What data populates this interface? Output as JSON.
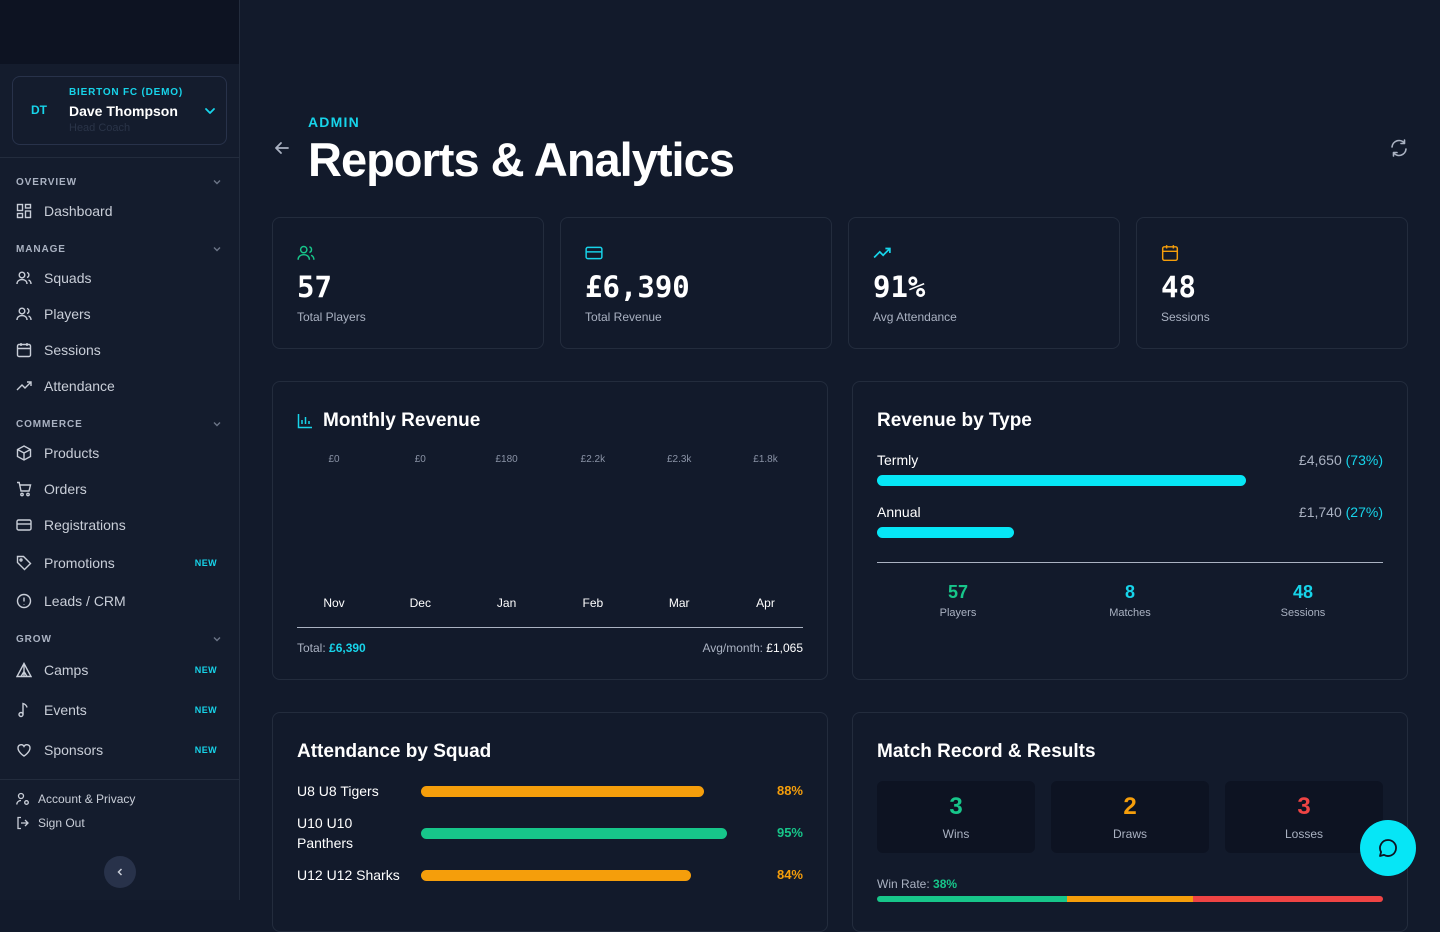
{
  "club": {
    "initials": "DT",
    "name": "BIERTON FC (DEMO)",
    "user": "Dave Thompson",
    "role": "Head Coach"
  },
  "sidebar": {
    "sections": [
      {
        "label": "OVERVIEW"
      },
      {
        "label": "MANAGE"
      },
      {
        "label": "COMMERCE"
      },
      {
        "label": "GROW"
      }
    ],
    "items": [
      {
        "label": "Dashboard",
        "badge": ""
      },
      {
        "label": "Squads",
        "badge": ""
      },
      {
        "label": "Players",
        "badge": ""
      },
      {
        "label": "Sessions",
        "badge": ""
      },
      {
        "label": "Attendance",
        "badge": ""
      },
      {
        "label": "Products",
        "badge": ""
      },
      {
        "label": "Orders",
        "badge": ""
      },
      {
        "label": "Registrations",
        "badge": ""
      },
      {
        "label": "Promotions",
        "badge": "NEW"
      },
      {
        "label": "Leads / CRM",
        "badge": ""
      },
      {
        "label": "Camps",
        "badge": "NEW"
      },
      {
        "label": "Events",
        "badge": "NEW"
      },
      {
        "label": "Sponsors",
        "badge": "NEW"
      }
    ],
    "footer": {
      "account": "Account & Privacy",
      "signout": "Sign Out"
    }
  },
  "header": {
    "eyebrow": "ADMIN",
    "title": "Reports & Analytics"
  },
  "stats": [
    {
      "value": "57",
      "label": "Total Players",
      "icon": "users-icon"
    },
    {
      "value": "£6,390",
      "label": "Total Revenue",
      "icon": "credit-card-icon"
    },
    {
      "value": "91%",
      "label": "Avg Attendance",
      "icon": "trending-up-icon"
    },
    {
      "value": "48",
      "label": "Sessions",
      "icon": "calendar-icon"
    }
  ],
  "monthly_revenue": {
    "title": "Monthly Revenue",
    "total_label": "Total:",
    "total_value": "£6,390",
    "avg_label": "Avg/month:",
    "avg_value": "£1,065"
  },
  "chart_data": {
    "type": "bar",
    "categories": [
      "Nov",
      "Dec",
      "Jan",
      "Feb",
      "Mar",
      "Apr"
    ],
    "values": [
      0,
      0,
      180,
      2200,
      2300,
      1800
    ],
    "value_labels": [
      "£0",
      "£0",
      "£180",
      "£2.2k",
      "£2.3k",
      "£1.8k"
    ],
    "title": "Monthly Revenue"
  },
  "revenue_by_type": {
    "title": "Revenue by Type",
    "rows": [
      {
        "name": "Termly",
        "amount": "£4,650",
        "pct": "(73%)",
        "fraction": 0.73
      },
      {
        "name": "Annual",
        "amount": "£1,740",
        "pct": "(27%)",
        "fraction": 0.27
      }
    ],
    "minis": [
      {
        "value": "57",
        "label": "Players",
        "color": "#17c68a"
      },
      {
        "value": "8",
        "label": "Matches",
        "color": "#17d4ea"
      },
      {
        "value": "48",
        "label": "Sessions",
        "color": "#17d4ea"
      }
    ]
  },
  "attendance": {
    "title": "Attendance by Squad",
    "rows": [
      {
        "name": "U8 U8 Tigers",
        "pct": "88%",
        "fraction": 0.88,
        "color": "#f59e0b"
      },
      {
        "name": "U10 U10 Panthers",
        "pct": "95%",
        "fraction": 0.95,
        "color": "#17c68a"
      },
      {
        "name": "U12 U12 Sharks",
        "pct": "84%",
        "fraction": 0.84,
        "color": "#f59e0b"
      }
    ]
  },
  "match_record": {
    "title": "Match Record & Results",
    "results": [
      {
        "value": "3",
        "label": "Wins",
        "color": "#17c68a"
      },
      {
        "value": "2",
        "label": "Draws",
        "color": "#f59e0b"
      },
      {
        "value": "3",
        "label": "Losses",
        "color": "#ef4444"
      }
    ],
    "win_rate_label": "Win Rate:",
    "win_rate_value": "38%"
  }
}
